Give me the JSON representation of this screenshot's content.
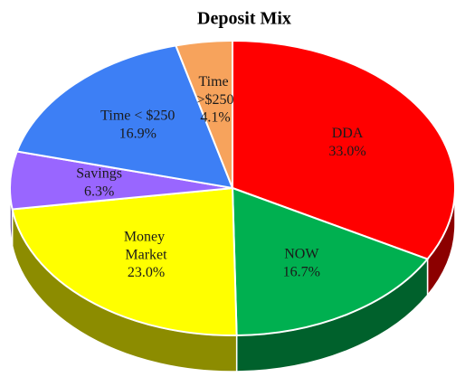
{
  "chart_data": {
    "type": "pie",
    "title": "Deposit Mix",
    "categories": [
      "DDA",
      "NOW",
      "Money Market",
      "Savings",
      "Time < $250",
      "Time >$250"
    ],
    "values": [
      33.0,
      16.7,
      23.0,
      6.3,
      16.9,
      4.1
    ],
    "value_labels": [
      "33.0%",
      "16.7%",
      "23.0%",
      "6.3%",
      "16.9%",
      "4.1%"
    ],
    "colors": [
      "#ff0000",
      "#00b050",
      "#ffff00",
      "#9966ff",
      "#3d7ff5",
      "#f7a35c"
    ]
  }
}
